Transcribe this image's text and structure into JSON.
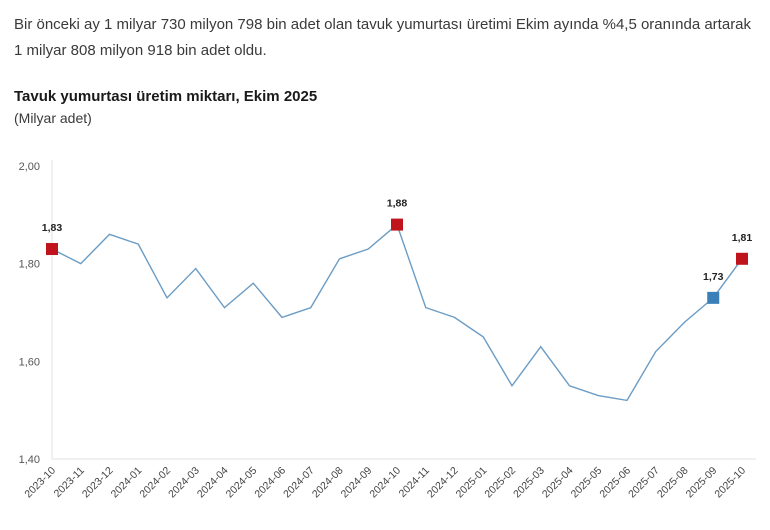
{
  "intro": {
    "line1": "Bir önceki ay 1 milyar 730 milyon 798 bin adet olan tavuk yumurtası üretimi Ekim ayında %4,5 oranında artarak",
    "line2": "1 milyar 808 milyon 918 bin adet oldu."
  },
  "colors": {
    "line": "#6b9cc4",
    "highlight_red": "#c0141c",
    "highlight_blue": "#3a7fb8",
    "axis": "#e0e0e0"
  },
  "chart_data": {
    "type": "line",
    "title": "Tavuk yumurtası üretim miktarı, Ekim 2025",
    "subtitle": "(Milyar adet)",
    "xlabel": "",
    "ylabel": "Milyar adet",
    "ylim": [
      1.4,
      2.0
    ],
    "yticks": [
      "1,40",
      "1,60",
      "1,80",
      "2,00"
    ],
    "grid": false,
    "legend": "none",
    "categories": [
      "2023-10",
      "2023-11",
      "2023-12",
      "2024-01",
      "2024-02",
      "2024-03",
      "2024-04",
      "2024-05",
      "2024-06",
      "2024-07",
      "2024-08",
      "2024-09",
      "2024-10",
      "2024-11",
      "2024-12",
      "2025-01",
      "2025-02",
      "2025-03",
      "2025-04",
      "2025-05",
      "2025-06",
      "2025-07",
      "2025-08",
      "2025-09",
      "2025-10"
    ],
    "series": [
      {
        "name": "Tavuk yumurtası üretimi",
        "values": [
          1.83,
          1.8,
          1.86,
          1.84,
          1.73,
          1.79,
          1.71,
          1.76,
          1.69,
          1.71,
          1.81,
          1.83,
          1.88,
          1.71,
          1.69,
          1.65,
          1.55,
          1.63,
          1.55,
          1.53,
          1.52,
          1.62,
          1.68,
          1.73,
          1.81
        ]
      }
    ],
    "annotations": [
      {
        "index": 0,
        "label": "1,83",
        "marker": "red"
      },
      {
        "index": 12,
        "label": "1,88",
        "marker": "red"
      },
      {
        "index": 23,
        "label": "1,73",
        "marker": "blue"
      },
      {
        "index": 24,
        "label": "1,81",
        "marker": "red"
      }
    ]
  }
}
